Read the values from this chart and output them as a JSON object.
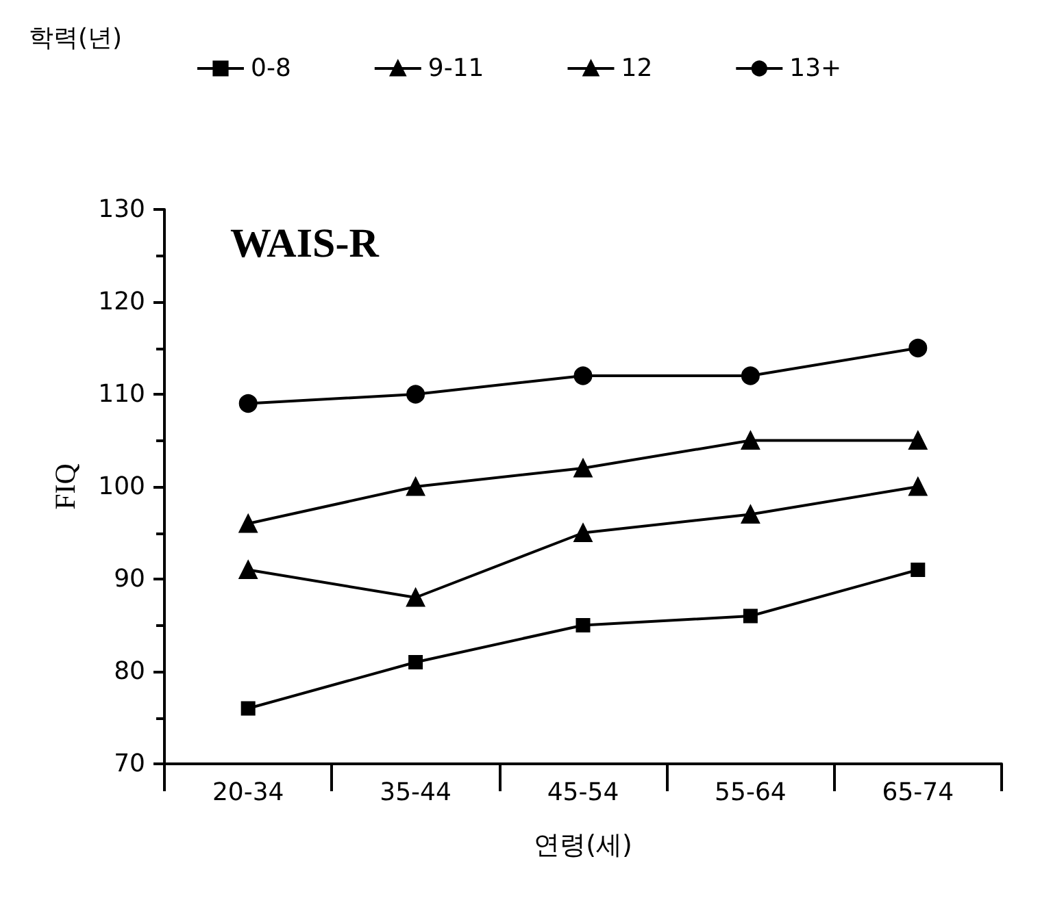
{
  "chart_data": {
    "type": "line",
    "legend_title": "학력(년)",
    "xlabel": "연령(세)",
    "ylabel": "FIQ",
    "annotations": [
      "WAIS-R"
    ],
    "categories": [
      "20-34",
      "35-44",
      "45-54",
      "55-64",
      "65-74"
    ],
    "series": [
      {
        "name": "0-8",
        "color": "#000000",
        "marker": "square",
        "values": [
          76,
          81,
          85,
          86,
          91
        ]
      },
      {
        "name": "9-11",
        "color": "#000000",
        "marker": "triangle",
        "values": [
          91,
          88,
          95,
          97,
          100
        ]
      },
      {
        "name": "12",
        "color": "#000000",
        "marker": "triangle",
        "values": [
          96,
          100,
          102,
          105,
          105
        ]
      },
      {
        "name": "13+",
        "color": "#000000",
        "marker": "circle",
        "values": [
          109,
          110,
          112,
          112,
          115
        ]
      }
    ],
    "ylim": [
      70,
      130
    ],
    "yticks": [
      70,
      80,
      90,
      100,
      110,
      120,
      130
    ],
    "grid": false,
    "legend": "top left",
    "line_style": "solid"
  }
}
